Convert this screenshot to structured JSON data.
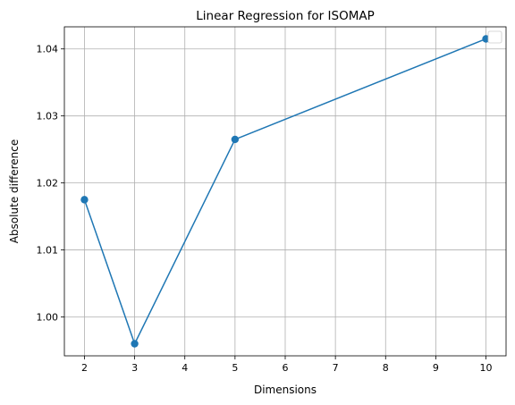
{
  "chart_data": {
    "type": "line",
    "title": "Linear Regression for ISOMAP",
    "xlabel": "Dimensions",
    "ylabel": "Absolute difference",
    "x": [
      2,
      3,
      5,
      10
    ],
    "series": [
      {
        "values": [
          1.0175,
          0.996,
          1.0265,
          1.0415
        ],
        "color": "#1f77b4",
        "marker": "circle"
      }
    ],
    "xlim": [
      1.6,
      10.4
    ],
    "ylim": [
      0.9942,
      1.0433
    ],
    "xticks": [
      2,
      3,
      4,
      5,
      6,
      7,
      8,
      9,
      10
    ],
    "yticks": [
      1.0,
      1.01,
      1.02,
      1.03,
      1.04
    ],
    "ytick_labels": [
      "1.00",
      "1.01",
      "1.02",
      "1.03",
      "1.04"
    ],
    "grid": true,
    "legend": {
      "placement": "top-right",
      "entries": []
    }
  }
}
